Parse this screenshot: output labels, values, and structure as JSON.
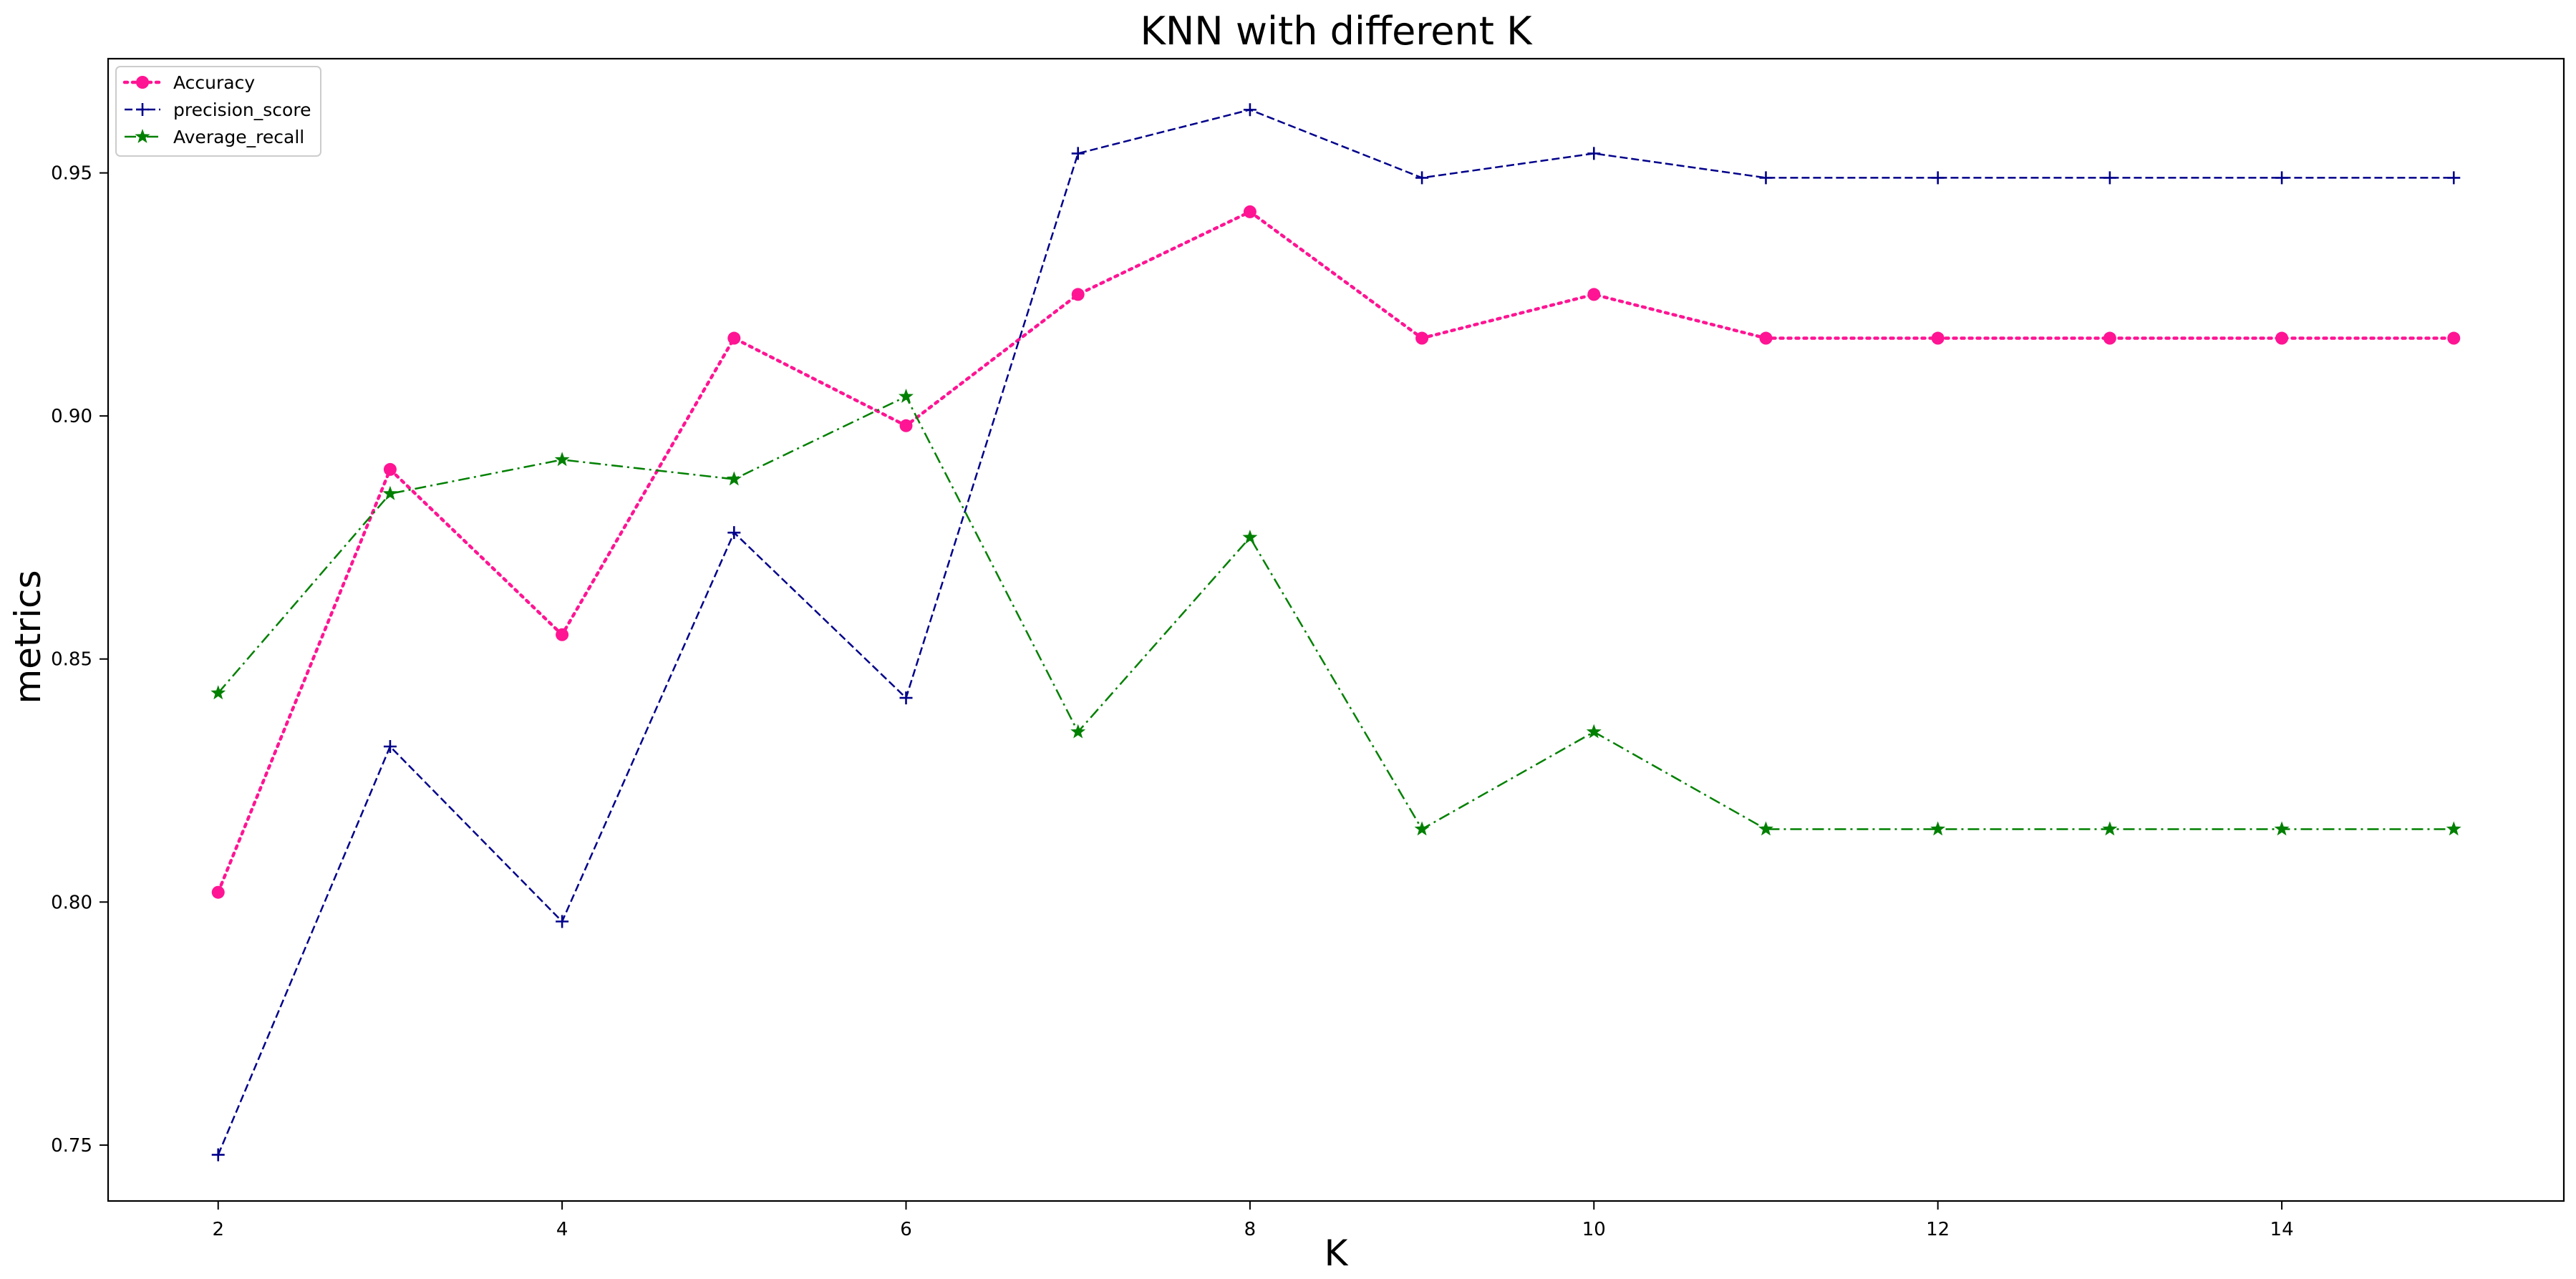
{
  "chart_data": {
    "type": "line",
    "title": "KNN with different K",
    "xlabel": "K",
    "ylabel": "metrics",
    "x": [
      2,
      3,
      4,
      5,
      6,
      7,
      8,
      9,
      10,
      11,
      12,
      13,
      14,
      15
    ],
    "xlim": [
      1.36,
      15.64
    ],
    "ylim": [
      0.7385,
      0.9735
    ],
    "xticks": [
      2,
      4,
      6,
      8,
      10,
      12,
      14
    ],
    "yticks": [
      0.75,
      0.8,
      0.85,
      0.9,
      0.95
    ],
    "ytick_labels": [
      "0.75",
      "0.80",
      "0.85",
      "0.90",
      "0.95"
    ],
    "grid": false,
    "legend_position": "top-left",
    "series": [
      {
        "name": "Accuracy",
        "color": "#ff1493",
        "linestyle": "dotted",
        "marker": "circle",
        "values": [
          0.802,
          0.889,
          0.855,
          0.916,
          0.898,
          0.925,
          0.942,
          0.916,
          0.925,
          0.916,
          0.916,
          0.916,
          0.916,
          0.916
        ]
      },
      {
        "name": "precision_score",
        "color": "#00008b",
        "linestyle": "dashed",
        "marker": "plus",
        "values": [
          0.748,
          0.832,
          0.796,
          0.876,
          0.842,
          0.954,
          0.963,
          0.949,
          0.954,
          0.949,
          0.949,
          0.949,
          0.949,
          0.949
        ]
      },
      {
        "name": "Average_recall",
        "color": "#008000",
        "linestyle": "dashdot",
        "marker": "star",
        "values": [
          0.843,
          0.884,
          0.891,
          0.887,
          0.904,
          0.835,
          0.875,
          0.815,
          0.835,
          0.815,
          0.815,
          0.815,
          0.815,
          0.815
        ]
      }
    ]
  }
}
